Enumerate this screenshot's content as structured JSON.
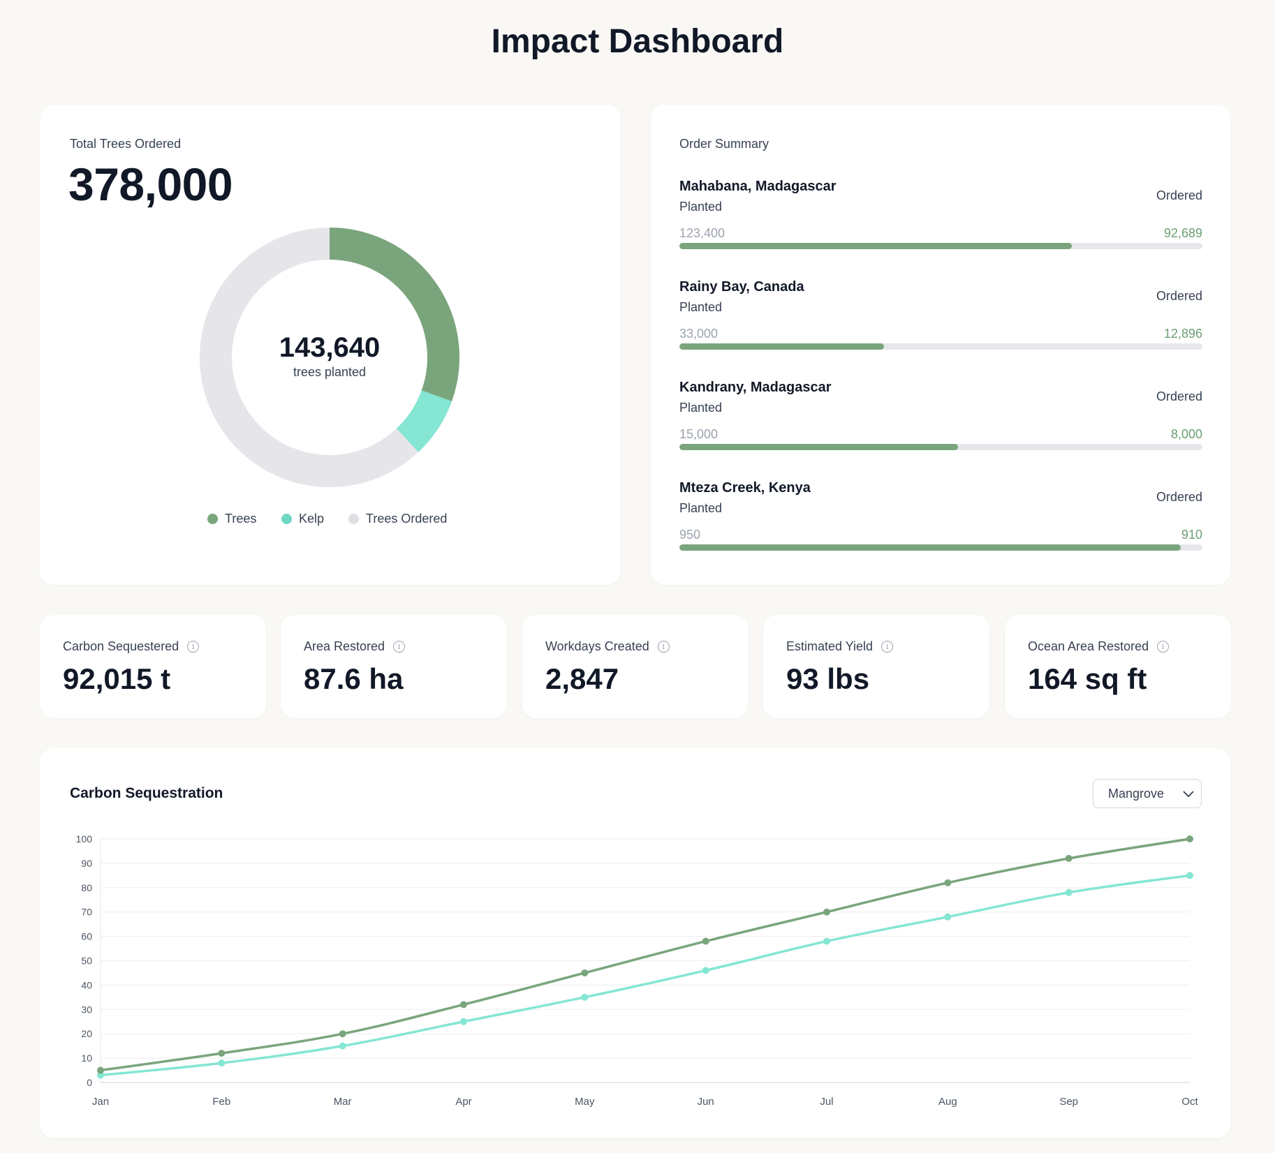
{
  "title": "Impact Dashboard",
  "trees_card": {
    "label": "Total Trees Ordered",
    "total": "378,000",
    "center_value": "143,640",
    "center_label": "trees planted",
    "donut": {
      "trees_share": 0.305,
      "kelp_share": 0.075,
      "total_ordered": 378000,
      "planted": 143640
    },
    "legend": [
      {
        "label": "Trees",
        "color": "#7aa57c"
      },
      {
        "label": "Kelp",
        "color": "#6fd8c2"
      },
      {
        "label": "Trees Ordered",
        "color": "#e5e7eb"
      }
    ]
  },
  "order_summary": {
    "title": "Order Summary",
    "planted_label": "Planted",
    "ordered_label": "Ordered",
    "rows": [
      {
        "name": "Mahabana, Madagascar",
        "left": "123,400",
        "right": "92,689",
        "progress": 0.751
      },
      {
        "name": "Rainy Bay, Canada",
        "left": "33,000",
        "right": "12,896",
        "progress": 0.391
      },
      {
        "name": "Kandrany, Madagascar",
        "left": "15,000",
        "right": "8,000",
        "progress": 0.533
      },
      {
        "name": "Mteza Creek, Kenya",
        "left": "950",
        "right": "910",
        "progress": 0.958
      }
    ]
  },
  "stats": [
    {
      "label": "Carbon Sequestered",
      "value": "92,015 t"
    },
    {
      "label": "Area Restored",
      "value": "87.6 ha"
    },
    {
      "label": "Workdays Created",
      "value": "2,847"
    },
    {
      "label": "Estimated Yield",
      "value": "93 lbs"
    },
    {
      "label": "Ocean Area Restored",
      "value": "164 sq ft"
    }
  ],
  "chart_card": {
    "title": "Carbon Sequestration",
    "dropdown": "Mangrove"
  },
  "chart_data": {
    "type": "line",
    "title": "Carbon Sequestration",
    "categories": [
      "Jan",
      "Feb",
      "Mar",
      "Apr",
      "May",
      "Jun",
      "Jul",
      "Aug",
      "Sep",
      "Oct"
    ],
    "ylim": [
      0,
      100
    ],
    "yticks": [
      0,
      10,
      20,
      30,
      40,
      50,
      60,
      70,
      80,
      90,
      100
    ],
    "grid": true,
    "series": [
      {
        "name": "Trees",
        "color": "#7aa57c",
        "values": [
          5,
          12,
          20,
          32,
          45,
          58,
          70,
          82,
          92,
          100
        ]
      },
      {
        "name": "Kelp",
        "color": "#84e6d3",
        "values": [
          3,
          8,
          15,
          25,
          35,
          46,
          58,
          68,
          78,
          85
        ]
      }
    ]
  }
}
